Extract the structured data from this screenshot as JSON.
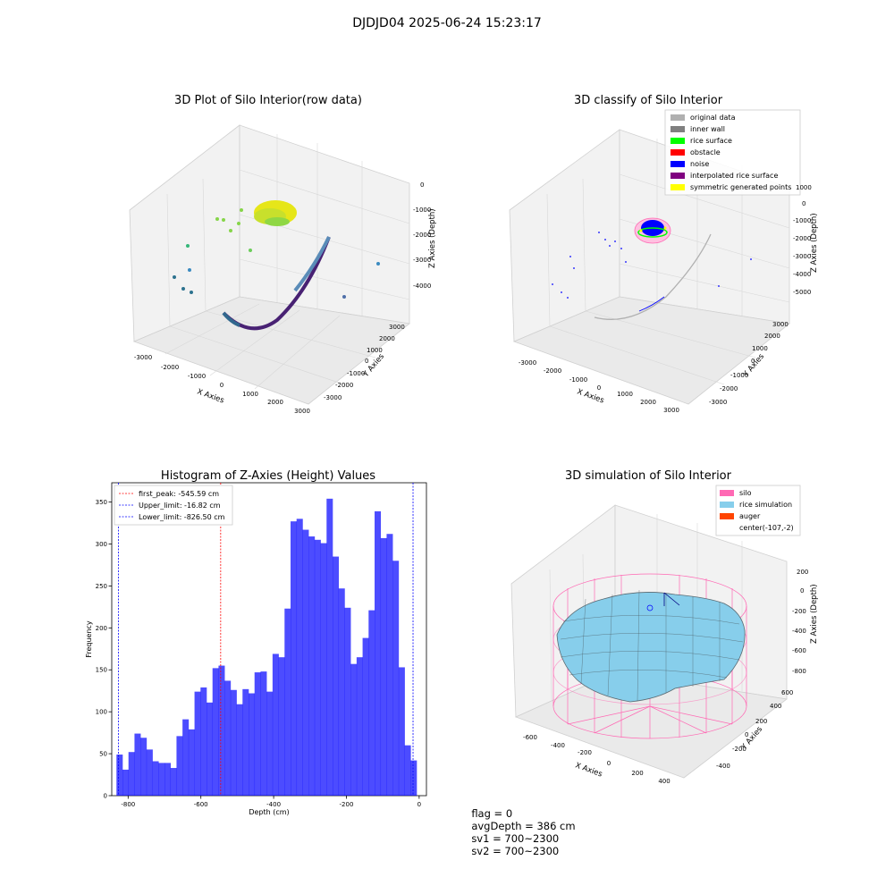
{
  "suptitle": "DJDJD04 2025-06-24 15:23:17",
  "footer": {
    "flag": "flag = 0",
    "avg": "avgDepth = 386 cm",
    "sv1": "sv1 = 700~2300",
    "sv2": "sv2 = 700~2300"
  },
  "panels": {
    "raw": {
      "title": "3D Plot of Silo Interior(row data)",
      "xlabel": "X Axies",
      "ylabel": "Y Axies",
      "zlabel": "Z Axies (Depth)",
      "xticks": [
        "-3000",
        "-2000",
        "-1000",
        "0",
        "1000",
        "2000",
        "3000"
      ],
      "yticks": [
        "3000",
        "2000",
        "1000",
        "0",
        "-1000",
        "-2000",
        "-3000"
      ],
      "zticks": [
        "0",
        "-1000",
        "-2000",
        "-3000",
        "-4000"
      ]
    },
    "classify": {
      "title": "3D classify of Silo Interior",
      "xlabel": "X Axies",
      "ylabel": "Y Axies",
      "zlabel": "Z Axies (Depth)",
      "xticks": [
        "-3000",
        "-2000",
        "-1000",
        "0",
        "1000",
        "2000",
        "3000"
      ],
      "yticks": [
        "3000",
        "2000",
        "1000",
        "0",
        "-1000",
        "-2000",
        "-3000"
      ],
      "zticks": [
        "1000",
        "0",
        "-1000",
        "-2000",
        "-3000",
        "-4000",
        "-5000"
      ],
      "legend": [
        {
          "label": "original data",
          "color": "#b0b0b0"
        },
        {
          "label": "inner wall",
          "color": "#808080"
        },
        {
          "label": "rice surface",
          "color": "#00ff00"
        },
        {
          "label": "obstacle",
          "color": "#ff0000"
        },
        {
          "label": "noise",
          "color": "#0000ff"
        },
        {
          "label": "interpolated rice surface",
          "color": "#800080"
        },
        {
          "label": "symmetric generated points",
          "color": "#ffff00"
        }
      ]
    },
    "simulation": {
      "title": "3D simulation of Silo Interior",
      "xlabel": "X Axies",
      "ylabel": "Y Axies",
      "zlabel": "Z Axies (Depth)",
      "xticks": [
        "-600",
        "-400",
        "-200",
        "0",
        "200",
        "400"
      ],
      "yticks": [
        "600",
        "400",
        "200",
        "0",
        "-200",
        "-400"
      ],
      "zticks": [
        "200",
        "0",
        "-200",
        "-400",
        "-600",
        "-800"
      ],
      "legend": [
        {
          "label": "silo",
          "color": "#ff69b4"
        },
        {
          "label": "rice simulation",
          "color": "#87ceeb"
        },
        {
          "label": "auger",
          "color": "#ff4500"
        },
        {
          "label": "center(-107,-2)",
          "color": ""
        }
      ]
    }
  },
  "chart_data": [
    {
      "type": "bar",
      "title": "Histogram of Z-Axies (Height) Values",
      "xlabel": "Depth (cm)",
      "ylabel": "Frequency",
      "bar_color": "#0000ff",
      "xlim": [
        -845,
        20
      ],
      "ylim": [
        0,
        373
      ],
      "xticks": [
        -800,
        -600,
        -400,
        -200,
        0
      ],
      "yticks": [
        0,
        50,
        100,
        150,
        200,
        250,
        300,
        350
      ],
      "bin_start": -832,
      "bin_width": 16.5,
      "values": [
        49,
        31,
        52,
        74,
        69,
        55,
        41,
        39,
        39,
        33,
        71,
        91,
        79,
        124,
        129,
        111,
        152,
        155,
        137,
        126,
        109,
        127,
        122,
        147,
        148,
        124,
        169,
        165,
        223,
        327,
        330,
        317,
        309,
        305,
        301,
        354,
        285,
        247,
        224,
        157,
        165,
        188,
        221,
        339,
        307,
        312,
        280,
        153,
        60,
        42
      ],
      "lines": [
        {
          "label": "first_peak: -545.59 cm",
          "x": -545.59,
          "color": "#ff0000"
        },
        {
          "label": "Upper_limit: -16.82 cm",
          "x": -16.82,
          "color": "#0000ff"
        },
        {
          "label": "Lower_limit: -826.50 cm",
          "x": -826.5,
          "color": "#0000ff"
        }
      ]
    }
  ]
}
